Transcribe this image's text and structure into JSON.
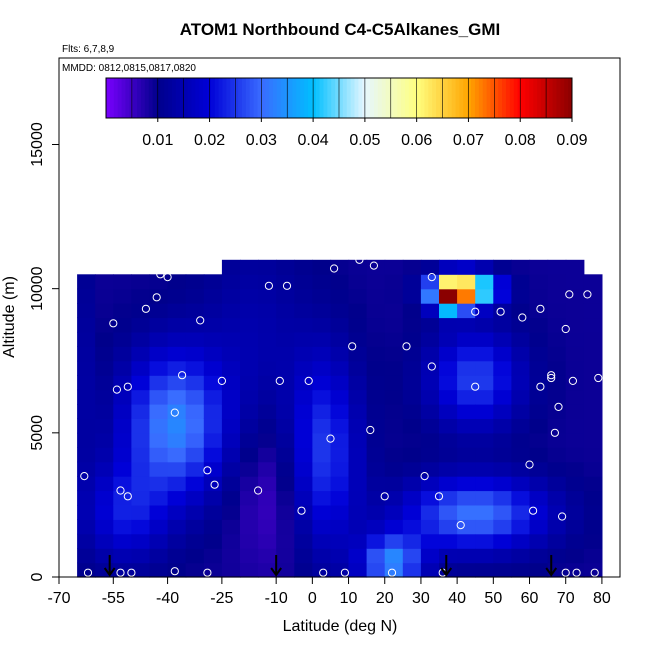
{
  "chart_data": {
    "type": "heatmap",
    "title": "ATOM1 Northbound C4-C5Alkanes_GMI",
    "annotations": [
      "Flts: 6,7,8,9",
      "MMDD: 0812,0815,0817,0820"
    ],
    "xlabel": "Latitude (deg N)",
    "ylabel": "Altitude (m)",
    "xlim": [
      -70,
      85
    ],
    "ylim": [
      0,
      18000
    ],
    "x_ticks": [
      -70,
      -55,
      -40,
      -25,
      -10,
      0,
      10,
      20,
      30,
      40,
      50,
      60,
      70,
      80
    ],
    "y_ticks": [
      0,
      5000,
      10000,
      15000
    ],
    "grid": false,
    "legend_position": "top (horizontal colorbar inside plot)",
    "colorbar": {
      "range": [
        0,
        0.09
      ],
      "ticks": [
        0.01,
        0.02,
        0.03,
        0.04,
        0.05,
        0.06,
        0.07,
        0.08,
        0.09
      ],
      "colors": [
        "#7a00ff",
        "#00008b",
        "#0000d8",
        "#3a6bff",
        "#00bfff",
        "#e6f7ff",
        "#ffff80",
        "#ffa500",
        "#ff0000",
        "#8b0000"
      ]
    },
    "latitude_bins": [
      -70,
      -65,
      -60,
      -55,
      -50,
      -45,
      -40,
      -35,
      -30,
      -25,
      -20,
      -15,
      -10,
      -5,
      0,
      5,
      10,
      15,
      20,
      25,
      30,
      35,
      40,
      45,
      50,
      55,
      60,
      65,
      70,
      75,
      80
    ],
    "altitude_bins": [
      0,
      500,
      1000,
      1500,
      2000,
      2500,
      3000,
      3500,
      4000,
      4500,
      5000,
      5500,
      6000,
      6500,
      7000,
      7500,
      8000,
      8500,
      9000,
      9500,
      10000,
      10500,
      11000
    ],
    "samples": [
      [
        -68,
        11000
      ],
      [
        -68,
        7000
      ],
      [
        -68,
        3200
      ],
      [
        -68,
        150
      ],
      [
        -63,
        3500
      ],
      [
        -62,
        150
      ],
      [
        -55,
        8800
      ],
      [
        -54,
        6500
      ],
      [
        -53,
        3000
      ],
      [
        -53,
        150
      ],
      [
        -51,
        6600
      ],
      [
        -51,
        2800
      ],
      [
        -50,
        150
      ],
      [
        -46,
        9300
      ],
      [
        -43,
        9700
      ],
      [
        -42,
        10500
      ],
      [
        -40,
        10400
      ],
      [
        -38,
        5700
      ],
      [
        -38,
        200
      ],
      [
        -36,
        7000
      ],
      [
        -31,
        8900
      ],
      [
        -29,
        3700
      ],
      [
        -29,
        150
      ],
      [
        -27,
        3200
      ],
      [
        -26,
        11100
      ],
      [
        -25,
        6800
      ],
      [
        -22,
        11200
      ],
      [
        -19,
        11300
      ],
      [
        -15,
        3000
      ],
      [
        -12,
        10100
      ],
      [
        -9,
        6800
      ],
      [
        -7,
        10100
      ],
      [
        -3,
        2300
      ],
      [
        -1,
        6800
      ],
      [
        3,
        150
      ],
      [
        5,
        4800
      ],
      [
        6,
        10700
      ],
      [
        9,
        150
      ],
      [
        11,
        8000
      ],
      [
        13,
        11000
      ],
      [
        16,
        5100
      ],
      [
        17,
        10800
      ],
      [
        20,
        2800
      ],
      [
        22,
        150
      ],
      [
        26,
        8000
      ],
      [
        31,
        3500
      ],
      [
        33,
        7300
      ],
      [
        33,
        10400
      ],
      [
        35,
        2800
      ],
      [
        36,
        150
      ],
      [
        41,
        1800
      ],
      [
        45,
        9200
      ],
      [
        45,
        6600
      ],
      [
        52,
        9200
      ],
      [
        58,
        9000
      ],
      [
        60,
        3900
      ],
      [
        61,
        2300
      ],
      [
        63,
        6600
      ],
      [
        63,
        9300
      ],
      [
        65,
        11300
      ],
      [
        66,
        7000
      ],
      [
        66,
        6900
      ],
      [
        67,
        5000
      ],
      [
        68,
        5900
      ],
      [
        69,
        2100
      ],
      [
        70,
        8600
      ],
      [
        70,
        150
      ],
      [
        71,
        9800
      ],
      [
        72,
        6800
      ],
      [
        73,
        150
      ],
      [
        76,
        9800
      ],
      [
        78,
        150
      ],
      [
        79,
        6900
      ]
    ],
    "arrow_latitudes": [
      -56,
      -10,
      37,
      66
    ]
  }
}
